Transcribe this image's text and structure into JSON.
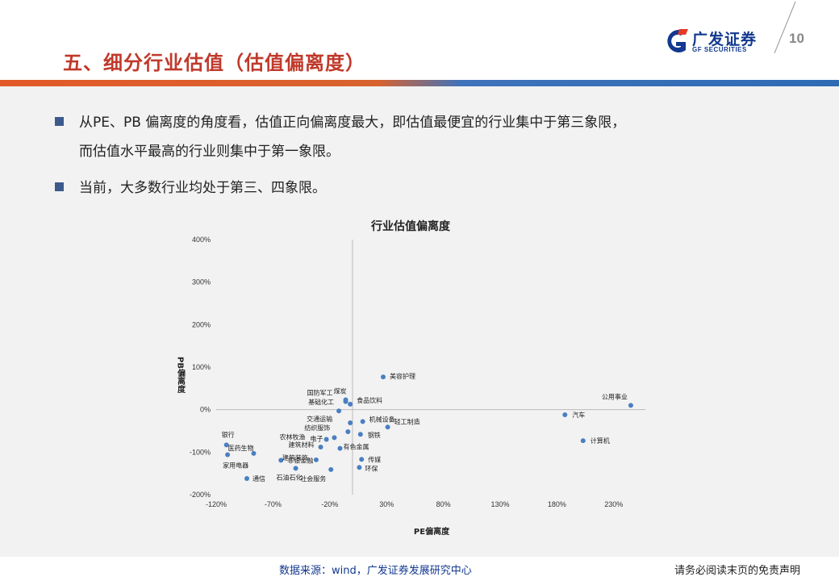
{
  "header": {
    "title": "五、细分行业估值（估值偏离度）",
    "logo_text": "广发证券",
    "logo_subtext": "GF SECURITIES",
    "page_number": "10"
  },
  "colors": {
    "title": "#c0392b",
    "bar_blue": "#2e6bb3",
    "bar_red": "#e25a2a",
    "bullet": "#3c5a8c",
    "point": "#4a7fc1",
    "brand_blue": "#12388f"
  },
  "bullets": [
    {
      "line1": "从PE、PB 偏离度的角度看，估值正向偏离度最大，即估值最便宜的行业集中于第三象限，",
      "line2": "而估值水平最高的行业则集中于第一象限。"
    },
    {
      "line1": "当前，大多数行业均处于第三、四象限。"
    }
  ],
  "chart_data": {
    "type": "scatter",
    "title": "行业估值偏离度",
    "xlabel": "PE偏离度",
    "ylabel": "PB偏离度",
    "xlim": [
      -120,
      255
    ],
    "ylim": [
      -200,
      400
    ],
    "x_ticks": [
      "-120%",
      "-70%",
      "-20%",
      "30%",
      "80%",
      "130%",
      "180%",
      "230%"
    ],
    "y_ticks": [
      "400%",
      "300%",
      "200%",
      "100%",
      "0%",
      "-100%",
      "-200%"
    ],
    "points": [
      {
        "name": "美容护理",
        "x": 27,
        "y": 77
      },
      {
        "name": "煤炭",
        "x": -6,
        "y": 23
      },
      {
        "name": "国防军工",
        "x": -6,
        "y": 19
      },
      {
        "name": "食品饮料",
        "x": -2,
        "y": 13
      },
      {
        "name": "基础化工",
        "x": -12,
        "y": -3
      },
      {
        "name": "公用事业",
        "x": 245,
        "y": 10
      },
      {
        "name": "汽车",
        "x": 187,
        "y": -12
      },
      {
        "name": "计算机",
        "x": 203,
        "y": -73
      },
      {
        "name": "交通运输",
        "x": -2,
        "y": -31
      },
      {
        "name": "机械设备",
        "x": 9,
        "y": -28
      },
      {
        "name": "轻工制造",
        "x": 31,
        "y": -41
      },
      {
        "name": "纺织服饰",
        "x": -4,
        "y": -52
      },
      {
        "name": "钢铁",
        "x": 7,
        "y": -58
      },
      {
        "name": "农林牧渔",
        "x": -23,
        "y": -70
      },
      {
        "name": "电子",
        "x": -16,
        "y": -66
      },
      {
        "name": "建筑材料",
        "x": -28,
        "y": -88
      },
      {
        "name": "有色金属",
        "x": -11,
        "y": -91
      },
      {
        "name": "银行",
        "x": -111,
        "y": -83
      },
      {
        "name": "医药生物",
        "x": -87,
        "y": -103
      },
      {
        "name": "家用电器",
        "x": -110,
        "y": -106
      },
      {
        "name": "非银金融",
        "x": -63,
        "y": -119
      },
      {
        "name": "建筑装饰",
        "x": -32,
        "y": -118
      },
      {
        "name": "传媒",
        "x": 8,
        "y": -117
      },
      {
        "name": "石油石化",
        "x": -50,
        "y": -138
      },
      {
        "name": "社会服务",
        "x": -19,
        "y": -141
      },
      {
        "name": "环保",
        "x": 6,
        "y": -136
      },
      {
        "name": "通信",
        "x": -93,
        "y": -162
      }
    ]
  },
  "footer": {
    "source": "数据来源：wind，广发证券发展研究中心",
    "disclaimer": "请务必阅读末页的免责声明"
  }
}
